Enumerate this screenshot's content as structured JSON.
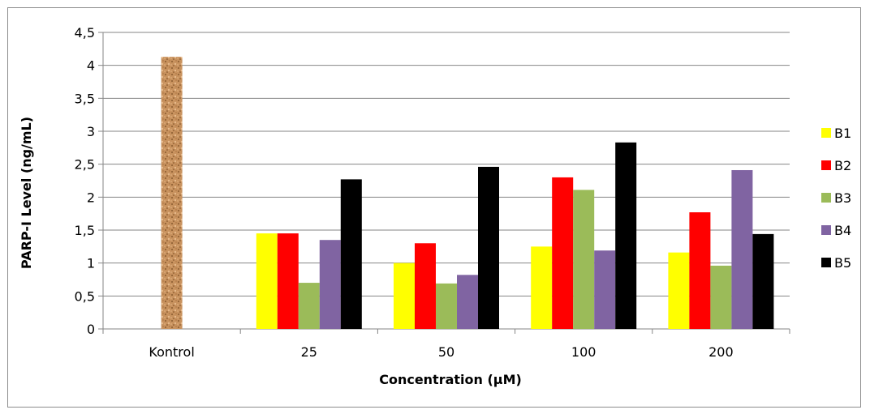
{
  "chart_data": {
    "type": "bar",
    "title": "",
    "xlabel": "Concentration (µM)",
    "ylabel": "PARP-I Level (ng/mL)",
    "ylim": [
      0,
      4.5
    ],
    "ytick_step": 0.5,
    "ytick_labels": [
      "0",
      "0,5",
      "1",
      "1,5",
      "2",
      "2,5",
      "3",
      "3,5",
      "4",
      "4,5"
    ],
    "grid": true,
    "legend_position": "right",
    "categories": [
      "Kontrol",
      "25",
      "50",
      "100",
      "200"
    ],
    "control": {
      "category": "Kontrol",
      "value": 4.13,
      "color": "#c8925e",
      "pattern": "cork-texture"
    },
    "series": [
      {
        "name": "B1",
        "color": "#ffff00",
        "values": [
          null,
          1.45,
          1.0,
          1.25,
          1.16
        ]
      },
      {
        "name": "B2",
        "color": "#ff0000",
        "values": [
          null,
          1.45,
          1.3,
          2.3,
          1.77
        ]
      },
      {
        "name": "B3",
        "color": "#9bbb59",
        "values": [
          null,
          0.7,
          0.69,
          2.11,
          0.96
        ]
      },
      {
        "name": "B4",
        "color": "#8064a2",
        "values": [
          null,
          1.35,
          0.82,
          1.19,
          2.41
        ]
      },
      {
        "name": "B5",
        "color": "#000000",
        "values": [
          null,
          2.27,
          2.46,
          2.83,
          1.44
        ]
      }
    ]
  }
}
